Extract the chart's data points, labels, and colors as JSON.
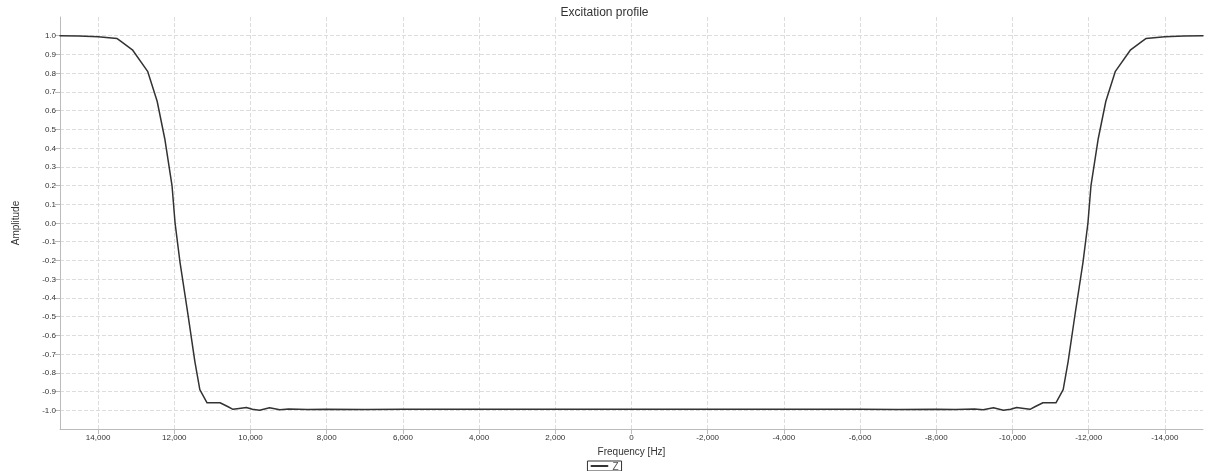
{
  "chart_data": {
    "type": "line",
    "title": "Excitation profile",
    "xlabel": "Frequency [Hz]",
    "ylabel": "Amplitude",
    "xlim": [
      15000,
      -15000
    ],
    "ylim": [
      -1.1,
      1.1
    ],
    "xticks": [
      {
        "value": 14000,
        "label": "14,000"
      },
      {
        "value": 12000,
        "label": "12,000"
      },
      {
        "value": 10000,
        "label": "10,000"
      },
      {
        "value": 8000,
        "label": "8,000"
      },
      {
        "value": 6000,
        "label": "6,000"
      },
      {
        "value": 4000,
        "label": "4,000"
      },
      {
        "value": 2000,
        "label": "2,000"
      },
      0,
      {
        "value": -2000,
        "label": "-2,000"
      },
      {
        "value": -4000,
        "label": "-4,000"
      },
      {
        "value": -6000,
        "label": "-6,000"
      },
      {
        "value": -8000,
        "label": "-8,000"
      },
      {
        "value": -10000,
        "label": "-10,000"
      },
      {
        "value": -12000,
        "label": "-12,000"
      },
      {
        "value": -14000,
        "label": "-14,000"
      }
    ],
    "yticks": [
      {
        "value": 1,
        "label": "1.0"
      },
      0.9,
      0.8,
      0.7,
      0.6,
      0.5,
      0.4,
      0.3,
      0.2,
      0.1,
      {
        "value": 0,
        "label": "0.0"
      },
      -0.1,
      -0.2,
      -0.3,
      -0.4,
      -0.5,
      -0.6,
      -0.7,
      -0.8,
      -0.9,
      {
        "value": -1,
        "label": "-1.0"
      }
    ],
    "grid": true,
    "legend": "bottom",
    "marker": "none",
    "line_style": "solid",
    "series": [
      {
        "name": "Z",
        "color": "#333333",
        "x": [
          15000,
          14500,
          14000,
          13500,
          13400,
          13100,
          12700,
          12450,
          12250,
          12060,
          11980,
          11850,
          11640,
          11460,
          11330,
          11140,
          10800,
          10600,
          10460,
          10300,
          10110,
          9950,
          9760,
          9500,
          9230,
          9000,
          8500,
          8000,
          7000,
          6000,
          4000,
          2000,
          0,
          -2000,
          -4000,
          -6000,
          -7000,
          -8000,
          -8500,
          -9000,
          -9230,
          -9500,
          -9760,
          -9950,
          -10110,
          -10300,
          -10460,
          -10600,
          -10800,
          -11140,
          -11330,
          -11460,
          -11640,
          -11850,
          -11980,
          -12060,
          -12250,
          -12450,
          -12700,
          -13100,
          -13400,
          -13500,
          -14000,
          -14500,
          -15000
        ],
        "values": [
          1.0,
          0.998,
          0.995,
          0.985,
          0.97,
          0.925,
          0.81,
          0.65,
          0.45,
          0.2,
          0.0,
          -0.21,
          -0.49,
          -0.74,
          -0.89,
          -0.96,
          -0.96,
          -0.98,
          -0.995,
          -0.99,
          -0.985,
          -0.995,
          -1.0,
          -0.987,
          -0.997,
          -0.993,
          -0.996,
          -0.994,
          -0.996,
          -0.995,
          -0.995,
          -0.995,
          -0.995,
          -0.995,
          -0.995,
          -0.995,
          -0.996,
          -0.994,
          -0.996,
          -0.993,
          -0.997,
          -0.987,
          -1.0,
          -0.995,
          -0.985,
          -0.99,
          -0.995,
          -0.98,
          -0.96,
          -0.96,
          -0.89,
          -0.74,
          -0.49,
          -0.21,
          0.0,
          0.2,
          0.45,
          0.65,
          0.81,
          0.925,
          0.97,
          0.985,
          0.995,
          0.998,
          1.0
        ]
      }
    ]
  }
}
